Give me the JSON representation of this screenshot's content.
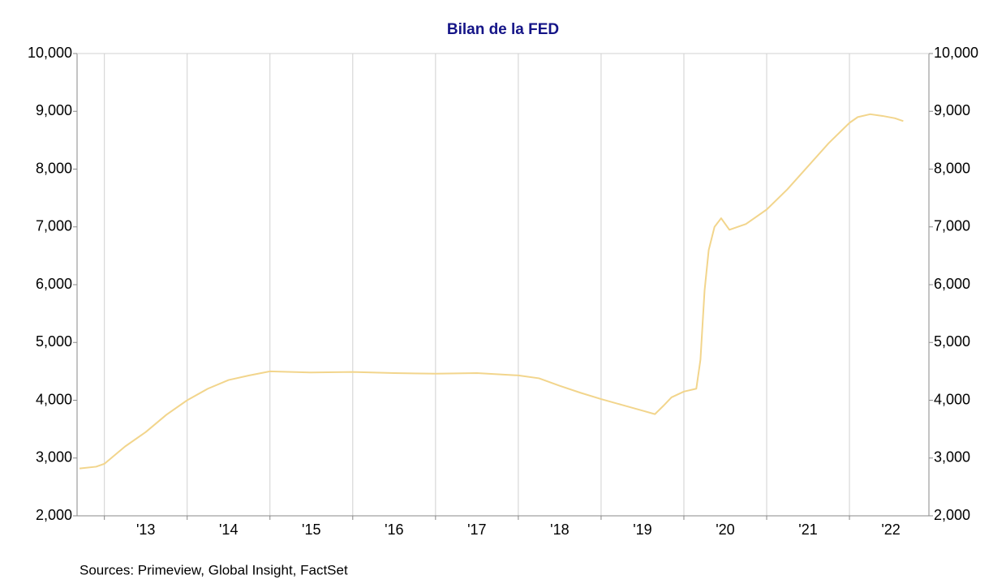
{
  "chart_data": {
    "type": "line",
    "title": "Bilan de la FED",
    "source": "Sources: Primeview, Global Insight, FactSet",
    "x": [
      2012.7,
      2012.9,
      2013.0,
      2013.25,
      2013.5,
      2013.75,
      2014.0,
      2014.25,
      2014.5,
      2014.75,
      2015.0,
      2015.5,
      2016.0,
      2016.5,
      2017.0,
      2017.5,
      2018.0,
      2018.25,
      2018.5,
      2018.75,
      2019.0,
      2019.25,
      2019.5,
      2019.65,
      2019.75,
      2019.85,
      2020.0,
      2020.15,
      2020.2,
      2020.25,
      2020.3,
      2020.37,
      2020.45,
      2020.55,
      2020.75,
      2021.0,
      2021.25,
      2021.5,
      2021.75,
      2022.0,
      2022.1,
      2022.25,
      2022.4,
      2022.55,
      2022.65
    ],
    "series": [
      {
        "name": "Bilan de la FED",
        "color": "#f2d58c",
        "values": [
          2820,
          2850,
          2900,
          3200,
          3450,
          3750,
          4000,
          4200,
          4350,
          4430,
          4500,
          4480,
          4490,
          4470,
          4460,
          4470,
          4430,
          4380,
          4250,
          4130,
          4020,
          3920,
          3820,
          3760,
          3900,
          4050,
          4150,
          4200,
          4700,
          5900,
          6600,
          7000,
          7150,
          6950,
          7050,
          7300,
          7650,
          8050,
          8450,
          8800,
          8900,
          8950,
          8920,
          8880,
          8830
        ]
      }
    ],
    "xlim": [
      2012.67,
      2022.96
    ],
    "xticks": [
      {
        "value": 2013.5,
        "label": "'13"
      },
      {
        "value": 2014.5,
        "label": "'14"
      },
      {
        "value": 2015.5,
        "label": "'15"
      },
      {
        "value": 2016.5,
        "label": "'16"
      },
      {
        "value": 2017.5,
        "label": "'17"
      },
      {
        "value": 2018.5,
        "label": "'18"
      },
      {
        "value": 2019.5,
        "label": "'19"
      },
      {
        "value": 2020.5,
        "label": "'20"
      },
      {
        "value": 2021.5,
        "label": "'21"
      },
      {
        "value": 2022.5,
        "label": "'22"
      }
    ],
    "xgrid": [
      2013,
      2014,
      2015,
      2016,
      2017,
      2018,
      2019,
      2020,
      2021,
      2022
    ],
    "ylim": [
      2000,
      10000
    ],
    "yticks": [
      {
        "value": 2000,
        "label": "2,000"
      },
      {
        "value": 3000,
        "label": "3,000"
      },
      {
        "value": 4000,
        "label": "4,000"
      },
      {
        "value": 5000,
        "label": "5,000"
      },
      {
        "value": 6000,
        "label": "6,000"
      },
      {
        "value": 7000,
        "label": "7,000"
      },
      {
        "value": 8000,
        "label": "8,000"
      },
      {
        "value": 9000,
        "label": "9,000"
      },
      {
        "value": 10000,
        "label": "10,000"
      }
    ],
    "y2lim": [
      2000,
      10000
    ],
    "y2ticks": [
      {
        "value": 2000,
        "label": "2,000"
      },
      {
        "value": 3000,
        "label": "3,000"
      },
      {
        "value": 4000,
        "label": "4,000"
      },
      {
        "value": 5000,
        "label": "5,000"
      },
      {
        "value": 6000,
        "label": "6,000"
      },
      {
        "value": 7000,
        "label": "7,000"
      },
      {
        "value": 8000,
        "label": "8,000"
      },
      {
        "value": 9000,
        "label": "9,000"
      },
      {
        "value": 10000,
        "label": "10,000"
      }
    ],
    "grid": true
  }
}
